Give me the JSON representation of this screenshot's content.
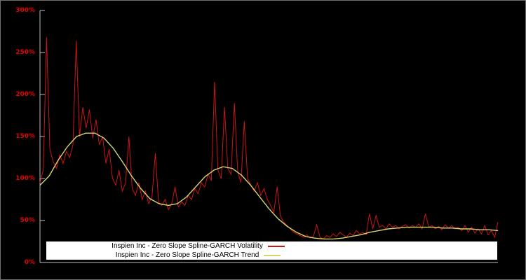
{
  "chart_data": {
    "type": "line",
    "title": "",
    "xlabel": "",
    "ylabel": "",
    "ylim": [
      0,
      300
    ],
    "y_ticks": [
      0,
      50,
      100,
      150,
      200,
      250,
      300
    ],
    "y_tick_suffix": "%",
    "grid": false,
    "legend_position": "bottom-inside-overlay",
    "series": [
      {
        "name": "Inspien Inc - Zero Slope Spline-GARCH Volatility",
        "color": "#cc1414",
        "values": [
          95,
          110,
          268,
          135,
          120,
          112,
          128,
          118,
          132,
          125,
          140,
          264,
          150,
          185,
          160,
          182,
          148,
          170,
          140,
          150,
          118,
          135,
          100,
          92,
          110,
          85,
          95,
          150,
          88,
          80,
          95,
          75,
          85,
          70,
          78,
          130,
          72,
          68,
          75,
          63,
          70,
          90,
          66,
          72,
          68,
          80,
          75,
          88,
          82,
          95,
          90,
          105,
          98,
          215,
          110,
          100,
          185,
          112,
          105,
          190,
          108,
          95,
          168,
          100,
          92,
          85,
          95,
          80,
          88,
          75,
          68,
          60,
          90,
          55,
          48,
          44,
          40,
          36,
          34,
          32,
          30,
          33,
          29,
          31,
          45,
          30,
          28,
          32,
          30,
          34,
          31,
          36,
          33,
          30,
          35,
          32,
          38,
          34,
          36,
          33,
          58,
          40,
          56,
          42,
          44,
          40,
          46,
          42,
          44,
          40,
          43,
          45,
          41,
          44,
          42,
          46,
          40,
          58,
          42,
          44,
          40,
          43,
          39,
          45,
          41,
          44,
          40,
          42,
          38,
          44,
          36,
          42,
          35,
          40,
          34,
          44,
          33,
          38,
          30,
          48
        ]
      },
      {
        "name": "Inspien Inc - Zero Slope Spline-GARCH Trend",
        "color": "#d4d472",
        "values": [
          92,
          103,
          122,
          138,
          150,
          154,
          154,
          148,
          136,
          120,
          103,
          88,
          76,
          70,
          68,
          70,
          78,
          90,
          102,
          110,
          114,
          112,
          104,
          92,
          78,
          64,
          52,
          43,
          36,
          31,
          29,
          28,
          28,
          29,
          31,
          33,
          36,
          38,
          40,
          41,
          42,
          42,
          42,
          42,
          41,
          41,
          40,
          40,
          39,
          39,
          38
        ]
      }
    ]
  },
  "colors": {
    "background": "#000000",
    "axis": "#bdbdbd",
    "tick_label": "#e60000",
    "legend_background": "#ffffff",
    "legend_text": "#000000"
  }
}
